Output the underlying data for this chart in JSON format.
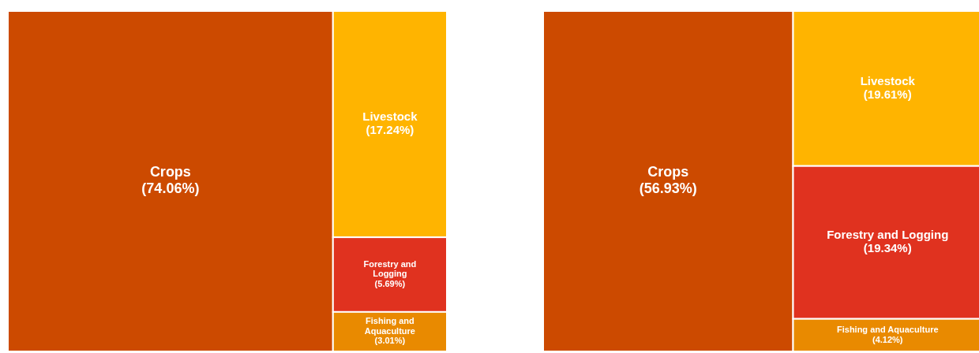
{
  "chart_data": [
    {
      "type": "other",
      "categories": [
        "Crops",
        "Livestock",
        "Forestry and Logging",
        "Fishing and Aquaculture"
      ],
      "values": [
        74.06,
        17.24,
        5.69,
        3.01
      ],
      "value_labels": [
        "(74.06%)",
        "(17.24%)",
        "(5.69%)",
        "(3.01%)"
      ],
      "colors": [
        "#cc4a00",
        "#ffb400",
        "#e0321f",
        "#e98a00"
      ]
    },
    {
      "type": "other",
      "categories": [
        "Crops",
        "Livestock",
        "Forestry and Logging",
        "Fishing and Aquaculture"
      ],
      "values": [
        56.93,
        19.61,
        19.34,
        4.12
      ],
      "value_labels": [
        "(56.93%)",
        "(19.61%)",
        "(19.34%)",
        "(4.12%)"
      ],
      "colors": [
        "#cc4a00",
        "#ffb400",
        "#e0321f",
        "#e98a00"
      ]
    }
  ]
}
